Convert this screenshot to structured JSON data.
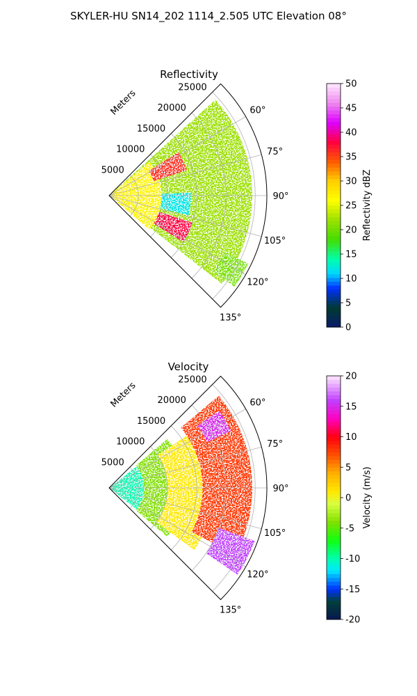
{
  "figure": {
    "suptitle": "SKYLER-HU  SN14_202  1114_2.505 UTC Elevation 08°"
  },
  "chart_data": [
    {
      "type": "heatmap",
      "title": "Reflectivity",
      "radial_axis_label": "Meters",
      "radial_ticks": [
        "5000",
        "10000",
        "15000",
        "20000",
        "25000"
      ],
      "angle_ticks": [
        "60°",
        "75°",
        "90°",
        "105°",
        "120°",
        "135°"
      ],
      "sector_degrees": [
        45,
        135
      ],
      "range_max_m": 27000,
      "colorbar": {
        "label": "Reflectivity dBZ",
        "range": [
          0,
          50
        ],
        "ticks": [
          "0",
          "5",
          "10",
          "15",
          "20",
          "25",
          "30",
          "35",
          "40",
          "45",
          "50"
        ],
        "colormap": "pyart_NWSRef"
      },
      "regions": [
        {
          "name": "dominant echo",
          "value_dbz": 22
        },
        {
          "name": "near-radar band",
          "value_dbz": 27
        },
        {
          "name": "upper core",
          "value_dbz": 36
        },
        {
          "name": "lower core",
          "value_dbz": 38
        },
        {
          "name": "low-reflectivity pocket",
          "value_dbz": 12
        },
        {
          "name": "far edge",
          "value_dbz": 20
        }
      ]
    },
    {
      "type": "heatmap",
      "title": "Velocity",
      "radial_axis_label": "Meters",
      "radial_ticks": [
        "5000",
        "10000",
        "15000",
        "20000",
        "25000"
      ],
      "angle_ticks": [
        "60°",
        "75°",
        "90°",
        "105°",
        "120°",
        "135°"
      ],
      "sector_degrees": [
        45,
        135
      ],
      "range_max_m": 27000,
      "colorbar": {
        "label": "Velocity (m/s)",
        "range": [
          -20,
          20
        ],
        "ticks": [
          "-20",
          "-15",
          "-10",
          "-5",
          "0",
          "5",
          "10",
          "15",
          "20"
        ],
        "colormap": "pyart_BuDRd"
      },
      "regions": [
        {
          "name": "near-radar inbound",
          "value_ms": -10
        },
        {
          "name": "inner ring",
          "value_ms": -4
        },
        {
          "name": "middle band",
          "value_ms": 1
        },
        {
          "name": "outer band",
          "value_ms": 8
        },
        {
          "name": "upper outbound maximum",
          "value_ms": 15
        },
        {
          "name": "lower-right folded echoes",
          "value_ms": 16
        }
      ]
    }
  ]
}
